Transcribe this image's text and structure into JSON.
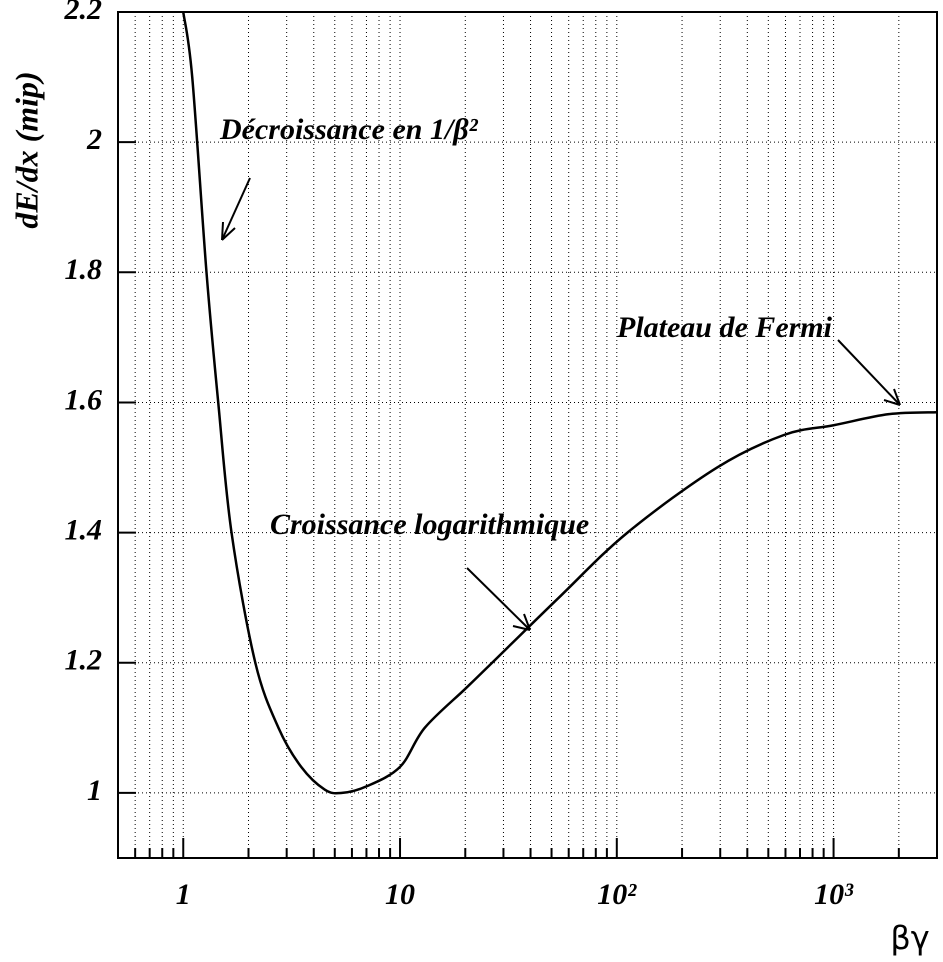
{
  "chart_data": {
    "type": "line",
    "x_label": "βγ",
    "y_label": "dE/dx (mip)",
    "annotations": [
      "Décroissance en 1/β²",
      "Croissance logarithmique",
      "Plateau de Fermi"
    ],
    "x": [
      1.0,
      1.1,
      1.28,
      1.45,
      1.67,
      2.15,
      2.75,
      3.5,
      4.5,
      5.4,
      7,
      10,
      13,
      20,
      26.6,
      54,
      112,
      290,
      590,
      1000,
      1800,
      3000
    ],
    "values": [
      2.2,
      2.1,
      1.8,
      1.6,
      1.4,
      1.2,
      1.1,
      1.04,
      1.005,
      1.0,
      1.01,
      1.04,
      1.1,
      1.16,
      1.2,
      1.3,
      1.4,
      1.5,
      1.55,
      1.565,
      1.582,
      1.585
    ],
    "color": "#000000",
    "x_log": true,
    "xlim": [
      0.5,
      3000
    ],
    "ylim": [
      0.9,
      2.2
    ],
    "xticks": [
      1,
      10,
      {
        "value": 100,
        "label": "10²"
      },
      {
        "value": 1000,
        "label": "10³"
      }
    ],
    "xminorticks": [
      0.6,
      0.7,
      0.8,
      0.9,
      2,
      3,
      4,
      5,
      6,
      7,
      8,
      9,
      20,
      30,
      40,
      50,
      60,
      70,
      80,
      90,
      200,
      300,
      400,
      500,
      600,
      700,
      800,
      900,
      2000
    ],
    "yticks": [
      1,
      1.2,
      1.4,
      1.6,
      1.8,
      2,
      2.2
    ],
    "grid": true
  }
}
